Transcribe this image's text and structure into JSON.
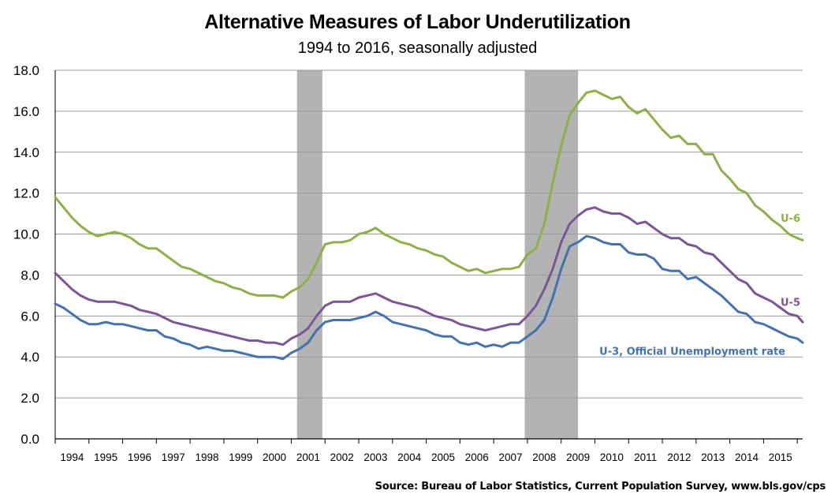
{
  "title": "Alternative Measures of Labor Underutilization",
  "subtitle": "1994 to 2016, seasonally adjusted",
  "source": "Source: Bureau of Labor Statistics, Current Population Survey, www.bls.gov/cps",
  "chart_data": {
    "type": "line",
    "ylim": [
      0,
      18
    ],
    "xlim": [
      1994.0,
      2016.16
    ],
    "y_ticks": [
      "0.0",
      "2.0",
      "4.0",
      "6.0",
      "8.0",
      "10.0",
      "12.0",
      "14.0",
      "16.0",
      "18.0"
    ],
    "x_tick_labels": [
      "1994",
      "1995",
      "1996",
      "1997",
      "1998",
      "1999",
      "2000",
      "2001",
      "2002",
      "2003",
      "2004",
      "2005",
      "2006",
      "2007",
      "2008",
      "2009",
      "2010",
      "2011",
      "2012",
      "2013",
      "2014",
      "2015"
    ],
    "grid": "horizontal",
    "recessions": [
      [
        2001.17,
        2001.92
      ],
      [
        2007.92,
        2009.5
      ]
    ],
    "recession_color": "#b3b3b3",
    "series": [
      {
        "name": "U-6",
        "color": "#8db048",
        "points": [
          [
            1994.0,
            11.8
          ],
          [
            1994.25,
            11.3
          ],
          [
            1994.5,
            10.8
          ],
          [
            1994.75,
            10.4
          ],
          [
            1995.0,
            10.1
          ],
          [
            1995.25,
            9.9
          ],
          [
            1995.5,
            10.0
          ],
          [
            1995.75,
            10.1
          ],
          [
            1996.0,
            10.0
          ],
          [
            1996.25,
            9.8
          ],
          [
            1996.5,
            9.5
          ],
          [
            1996.75,
            9.3
          ],
          [
            1997.0,
            9.3
          ],
          [
            1997.25,
            9.0
          ],
          [
            1997.5,
            8.7
          ],
          [
            1997.75,
            8.4
          ],
          [
            1998.0,
            8.3
          ],
          [
            1998.25,
            8.1
          ],
          [
            1998.5,
            7.9
          ],
          [
            1998.75,
            7.7
          ],
          [
            1999.0,
            7.6
          ],
          [
            1999.25,
            7.4
          ],
          [
            1999.5,
            7.3
          ],
          [
            1999.75,
            7.1
          ],
          [
            2000.0,
            7.0
          ],
          [
            2000.25,
            7.0
          ],
          [
            2000.5,
            7.0
          ],
          [
            2000.75,
            6.9
          ],
          [
            2001.0,
            7.2
          ],
          [
            2001.25,
            7.4
          ],
          [
            2001.5,
            7.8
          ],
          [
            2001.75,
            8.6
          ],
          [
            2002.0,
            9.5
          ],
          [
            2002.25,
            9.6
          ],
          [
            2002.5,
            9.6
          ],
          [
            2002.75,
            9.7
          ],
          [
            2003.0,
            10.0
          ],
          [
            2003.25,
            10.1
          ],
          [
            2003.5,
            10.3
          ],
          [
            2003.75,
            10.0
          ],
          [
            2004.0,
            9.8
          ],
          [
            2004.25,
            9.6
          ],
          [
            2004.5,
            9.5
          ],
          [
            2004.75,
            9.3
          ],
          [
            2005.0,
            9.2
          ],
          [
            2005.25,
            9.0
          ],
          [
            2005.5,
            8.9
          ],
          [
            2005.75,
            8.6
          ],
          [
            2006.0,
            8.4
          ],
          [
            2006.25,
            8.2
          ],
          [
            2006.5,
            8.3
          ],
          [
            2006.75,
            8.1
          ],
          [
            2007.0,
            8.2
          ],
          [
            2007.25,
            8.3
          ],
          [
            2007.5,
            8.3
          ],
          [
            2007.75,
            8.4
          ],
          [
            2008.0,
            9.0
          ],
          [
            2008.25,
            9.3
          ],
          [
            2008.5,
            10.5
          ],
          [
            2008.75,
            12.5
          ],
          [
            2009.0,
            14.3
          ],
          [
            2009.25,
            15.8
          ],
          [
            2009.5,
            16.4
          ],
          [
            2009.75,
            16.9
          ],
          [
            2010.0,
            17.0
          ],
          [
            2010.25,
            16.8
          ],
          [
            2010.5,
            16.6
          ],
          [
            2010.75,
            16.7
          ],
          [
            2011.0,
            16.2
          ],
          [
            2011.25,
            15.9
          ],
          [
            2011.5,
            16.1
          ],
          [
            2011.75,
            15.6
          ],
          [
            2012.0,
            15.1
          ],
          [
            2012.25,
            14.7
          ],
          [
            2012.5,
            14.8
          ],
          [
            2012.75,
            14.4
          ],
          [
            2013.0,
            14.4
          ],
          [
            2013.25,
            13.9
          ],
          [
            2013.5,
            13.9
          ],
          [
            2013.75,
            13.1
          ],
          [
            2014.0,
            12.7
          ],
          [
            2014.25,
            12.2
          ],
          [
            2014.5,
            12.0
          ],
          [
            2014.75,
            11.4
          ],
          [
            2015.0,
            11.1
          ],
          [
            2015.25,
            10.7
          ],
          [
            2015.5,
            10.4
          ],
          [
            2015.75,
            10.0
          ],
          [
            2016.0,
            9.8
          ],
          [
            2016.16,
            9.7
          ]
        ]
      },
      {
        "name": "U-5",
        "color": "#7b5597",
        "points": [
          [
            1994.0,
            8.1
          ],
          [
            1994.25,
            7.7
          ],
          [
            1994.5,
            7.3
          ],
          [
            1994.75,
            7.0
          ],
          [
            1995.0,
            6.8
          ],
          [
            1995.25,
            6.7
          ],
          [
            1995.5,
            6.7
          ],
          [
            1995.75,
            6.7
          ],
          [
            1996.0,
            6.6
          ],
          [
            1996.25,
            6.5
          ],
          [
            1996.5,
            6.3
          ],
          [
            1996.75,
            6.2
          ],
          [
            1997.0,
            6.1
          ],
          [
            1997.25,
            5.9
          ],
          [
            1997.5,
            5.7
          ],
          [
            1997.75,
            5.6
          ],
          [
            1998.0,
            5.5
          ],
          [
            1998.25,
            5.4
          ],
          [
            1998.5,
            5.3
          ],
          [
            1998.75,
            5.2
          ],
          [
            1999.0,
            5.1
          ],
          [
            1999.25,
            5.0
          ],
          [
            1999.5,
            4.9
          ],
          [
            1999.75,
            4.8
          ],
          [
            2000.0,
            4.8
          ],
          [
            2000.25,
            4.7
          ],
          [
            2000.5,
            4.7
          ],
          [
            2000.75,
            4.6
          ],
          [
            2001.0,
            4.9
          ],
          [
            2001.25,
            5.1
          ],
          [
            2001.5,
            5.4
          ],
          [
            2001.75,
            6.0
          ],
          [
            2002.0,
            6.5
          ],
          [
            2002.25,
            6.7
          ],
          [
            2002.5,
            6.7
          ],
          [
            2002.75,
            6.7
          ],
          [
            2003.0,
            6.9
          ],
          [
            2003.25,
            7.0
          ],
          [
            2003.5,
            7.1
          ],
          [
            2003.75,
            6.9
          ],
          [
            2004.0,
            6.7
          ],
          [
            2004.25,
            6.6
          ],
          [
            2004.5,
            6.5
          ],
          [
            2004.75,
            6.4
          ],
          [
            2005.0,
            6.2
          ],
          [
            2005.25,
            6.0
          ],
          [
            2005.5,
            5.9
          ],
          [
            2005.75,
            5.8
          ],
          [
            2006.0,
            5.6
          ],
          [
            2006.25,
            5.5
          ],
          [
            2006.5,
            5.4
          ],
          [
            2006.75,
            5.3
          ],
          [
            2007.0,
            5.4
          ],
          [
            2007.25,
            5.5
          ],
          [
            2007.5,
            5.6
          ],
          [
            2007.75,
            5.6
          ],
          [
            2008.0,
            6.0
          ],
          [
            2008.25,
            6.5
          ],
          [
            2008.5,
            7.3
          ],
          [
            2008.75,
            8.3
          ],
          [
            2009.0,
            9.6
          ],
          [
            2009.25,
            10.5
          ],
          [
            2009.5,
            10.9
          ],
          [
            2009.75,
            11.2
          ],
          [
            2010.0,
            11.3
          ],
          [
            2010.25,
            11.1
          ],
          [
            2010.5,
            11.0
          ],
          [
            2010.75,
            11.0
          ],
          [
            2011.0,
            10.8
          ],
          [
            2011.25,
            10.5
          ],
          [
            2011.5,
            10.6
          ],
          [
            2011.75,
            10.3
          ],
          [
            2012.0,
            10.0
          ],
          [
            2012.25,
            9.8
          ],
          [
            2012.5,
            9.8
          ],
          [
            2012.75,
            9.5
          ],
          [
            2013.0,
            9.4
          ],
          [
            2013.25,
            9.1
          ],
          [
            2013.5,
            9.0
          ],
          [
            2013.75,
            8.6
          ],
          [
            2014.0,
            8.2
          ],
          [
            2014.25,
            7.8
          ],
          [
            2014.5,
            7.6
          ],
          [
            2014.75,
            7.1
          ],
          [
            2015.0,
            6.9
          ],
          [
            2015.25,
            6.7
          ],
          [
            2015.5,
            6.4
          ],
          [
            2015.75,
            6.1
          ],
          [
            2016.0,
            6.0
          ],
          [
            2016.16,
            5.7
          ]
        ]
      },
      {
        "name": "U-3, Official Unemployment rate",
        "color": "#4472b0",
        "points": [
          [
            1994.0,
            6.6
          ],
          [
            1994.25,
            6.4
          ],
          [
            1994.5,
            6.1
          ],
          [
            1994.75,
            5.8
          ],
          [
            1995.0,
            5.6
          ],
          [
            1995.25,
            5.6
          ],
          [
            1995.5,
            5.7
          ],
          [
            1995.75,
            5.6
          ],
          [
            1996.0,
            5.6
          ],
          [
            1996.25,
            5.5
          ],
          [
            1996.5,
            5.4
          ],
          [
            1996.75,
            5.3
          ],
          [
            1997.0,
            5.3
          ],
          [
            1997.25,
            5.0
          ],
          [
            1997.5,
            4.9
          ],
          [
            1997.75,
            4.7
          ],
          [
            1998.0,
            4.6
          ],
          [
            1998.25,
            4.4
          ],
          [
            1998.5,
            4.5
          ],
          [
            1998.75,
            4.4
          ],
          [
            1999.0,
            4.3
          ],
          [
            1999.25,
            4.3
          ],
          [
            1999.5,
            4.2
          ],
          [
            1999.75,
            4.1
          ],
          [
            2000.0,
            4.0
          ],
          [
            2000.25,
            4.0
          ],
          [
            2000.5,
            4.0
          ],
          [
            2000.75,
            3.9
          ],
          [
            2001.0,
            4.2
          ],
          [
            2001.25,
            4.4
          ],
          [
            2001.5,
            4.7
          ],
          [
            2001.75,
            5.3
          ],
          [
            2002.0,
            5.7
          ],
          [
            2002.25,
            5.8
          ],
          [
            2002.5,
            5.8
          ],
          [
            2002.75,
            5.8
          ],
          [
            2003.0,
            5.9
          ],
          [
            2003.25,
            6.0
          ],
          [
            2003.5,
            6.2
          ],
          [
            2003.75,
            6.0
          ],
          [
            2004.0,
            5.7
          ],
          [
            2004.25,
            5.6
          ],
          [
            2004.5,
            5.5
          ],
          [
            2004.75,
            5.4
          ],
          [
            2005.0,
            5.3
          ],
          [
            2005.25,
            5.1
          ],
          [
            2005.5,
            5.0
          ],
          [
            2005.75,
            5.0
          ],
          [
            2006.0,
            4.7
          ],
          [
            2006.25,
            4.6
          ],
          [
            2006.5,
            4.7
          ],
          [
            2006.75,
            4.5
          ],
          [
            2007.0,
            4.6
          ],
          [
            2007.25,
            4.5
          ],
          [
            2007.5,
            4.7
          ],
          [
            2007.75,
            4.7
          ],
          [
            2008.0,
            5.0
          ],
          [
            2008.25,
            5.3
          ],
          [
            2008.5,
            5.8
          ],
          [
            2008.75,
            6.9
          ],
          [
            2009.0,
            8.3
          ],
          [
            2009.25,
            9.4
          ],
          [
            2009.5,
            9.6
          ],
          [
            2009.75,
            9.9
          ],
          [
            2010.0,
            9.8
          ],
          [
            2010.25,
            9.6
          ],
          [
            2010.5,
            9.5
          ],
          [
            2010.75,
            9.5
          ],
          [
            2011.0,
            9.1
          ],
          [
            2011.25,
            9.0
          ],
          [
            2011.5,
            9.0
          ],
          [
            2011.75,
            8.8
          ],
          [
            2012.0,
            8.3
          ],
          [
            2012.25,
            8.2
          ],
          [
            2012.5,
            8.2
          ],
          [
            2012.75,
            7.8
          ],
          [
            2013.0,
            7.9
          ],
          [
            2013.25,
            7.6
          ],
          [
            2013.5,
            7.3
          ],
          [
            2013.75,
            7.0
          ],
          [
            2014.0,
            6.6
          ],
          [
            2014.25,
            6.2
          ],
          [
            2014.5,
            6.1
          ],
          [
            2014.75,
            5.7
          ],
          [
            2015.0,
            5.6
          ],
          [
            2015.25,
            5.4
          ],
          [
            2015.5,
            5.2
          ],
          [
            2015.75,
            5.0
          ],
          [
            2016.0,
            4.9
          ],
          [
            2016.16,
            4.7
          ]
        ]
      }
    ]
  }
}
